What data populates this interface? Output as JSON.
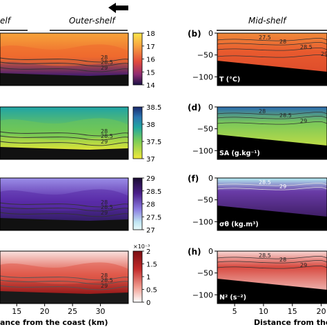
{
  "header": {
    "left_partial": "elf",
    "outer_label": "Outer-shelf",
    "mid_label": "Mid-shelf"
  },
  "panel_letters": [
    "(b)",
    "(d)",
    "(f)",
    "(h)"
  ],
  "left_panels": [
    {
      "var": "T",
      "colorbar": {
        "ticks": [
          "18",
          "17",
          "16",
          "15",
          "14"
        ],
        "exponent": ""
      },
      "contour_labels": [
        "28",
        "28.5",
        "29"
      ],
      "colors": {
        "surface": "#f6a33a",
        "mid": "#ef6a2e",
        "deep": "#4a1e6e",
        "bottom": "#1d1436"
      }
    },
    {
      "var": "SA",
      "colorbar": {
        "ticks": [
          "38.5",
          "38",
          "37.5",
          "37"
        ],
        "exponent": ""
      },
      "contour_labels": [
        "28",
        "28.5",
        "29"
      ],
      "colors": {
        "surface": "#1fa3a6",
        "mid": "#6fc657",
        "deep": "#d7e23a",
        "bottom": "#f1e83a"
      }
    },
    {
      "var": "sigma",
      "colorbar": {
        "ticks": [
          "29",
          "28.5",
          "28",
          "27.5",
          "27"
        ],
        "exponent": ""
      },
      "contour_labels": [
        "28",
        "28.5",
        "29"
      ],
      "colors": {
        "surface": "#9b8ee8",
        "mid": "#5a2ca8",
        "deep": "#351e6a",
        "bottom": "#1a0e30"
      }
    },
    {
      "var": "N2",
      "colorbar": {
        "ticks": [
          "2",
          "1.5",
          "1",
          "0.5",
          "0"
        ],
        "exponent": "×10⁻³"
      },
      "contour_labels": [
        "28",
        "28.5",
        "29"
      ],
      "colors": {
        "surface": "#f9e2e0",
        "mid": "#e05a4a",
        "deep": "#9a1c1c",
        "bottom": "#fbe7e5"
      }
    }
  ],
  "right_panels": [
    {
      "letter": "(b)",
      "var_label": "T (°C)",
      "contour_labels": [
        "27.5",
        "28",
        "28.5",
        "29"
      ]
    },
    {
      "letter": "(d)",
      "var_label": "SA (g.kg⁻¹)",
      "contour_labels": [
        "28",
        "28.5",
        "29"
      ]
    },
    {
      "letter": "(f)",
      "var_label": "σθ (kg.m³)",
      "contour_labels": [
        "28.5",
        "29"
      ]
    },
    {
      "letter": "(h)",
      "var_label": "N² (s⁻²)",
      "contour_labels": [
        "28.5",
        "28",
        "29"
      ]
    }
  ],
  "chart_data": [
    {
      "type": "heatmap",
      "title": "",
      "panels": [
        "T",
        "SA",
        "σθ",
        "N²"
      ],
      "xlabel": "ance from the coast (km)",
      "xticks": [
        "15",
        "20",
        "25",
        "30"
      ],
      "xlim": [
        12,
        35
      ],
      "colorbars": [
        {
          "var": "T",
          "range": [
            14,
            18
          ],
          "ticks": [
            "18",
            "17",
            "16",
            "15",
            "14"
          ]
        },
        {
          "var": "SA",
          "range": [
            37,
            38.5
          ],
          "ticks": [
            "38.5",
            "38",
            "37.5",
            "37"
          ]
        },
        {
          "var": "σθ",
          "range": [
            27,
            29
          ],
          "ticks": [
            "29",
            "28.5",
            "28",
            "27.5",
            "27"
          ]
        },
        {
          "var": "N²",
          "range": [
            0,
            2
          ],
          "ticks": [
            "2",
            "1.5",
            "1",
            "0.5",
            "0"
          ],
          "exponent": "×10⁻³"
        }
      ],
      "contours": [
        "28",
        "28.5",
        "29"
      ]
    },
    {
      "type": "heatmap",
      "title": "",
      "panels": [
        "T (°C)",
        "SA (g.kg⁻¹)",
        "σθ (kg.m³)",
        "N² (s⁻²)"
      ],
      "xlabel": "Distance from the",
      "xticks": [
        "5",
        "10",
        "15",
        "20"
      ],
      "xlim": [
        2,
        21
      ],
      "yticks": [
        "0",
        "-50",
        "-100"
      ],
      "ylim": [
        -120,
        0
      ],
      "contours": [
        "27.5",
        "28",
        "28.5",
        "29"
      ]
    }
  ]
}
